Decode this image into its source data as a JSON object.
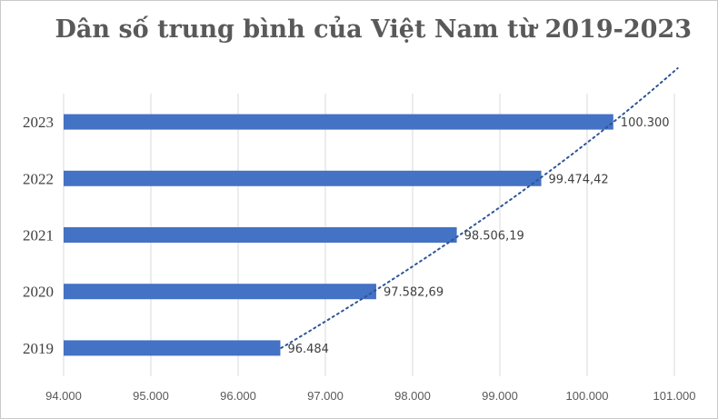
{
  "chart_data": {
    "type": "bar",
    "orientation": "horizontal",
    "title": "Dân số trung bình của Việt Nam từ 2019-2023",
    "categories": [
      "2019",
      "2020",
      "2021",
      "2022",
      "2023"
    ],
    "values": [
      96484,
      97582.69,
      98506.19,
      99474.42,
      100300
    ],
    "data_labels": [
      "96.484",
      "97.582,69",
      "98.506,19",
      "99.474,42",
      "100.300"
    ],
    "xlim": [
      94000,
      101000
    ],
    "x_ticks": [
      94000,
      95000,
      96000,
      97000,
      98000,
      99000,
      100000,
      101000
    ],
    "x_tick_labels": [
      "94.000",
      "95.000",
      "96.000",
      "97.000",
      "98.000",
      "99.000",
      "100.000",
      "101.000"
    ],
    "grid": "vertical",
    "trendline": "polynomial",
    "colors": {
      "bar": "#4472c4",
      "trendline": "#2f5597",
      "grid": "#d9d9d9"
    }
  }
}
